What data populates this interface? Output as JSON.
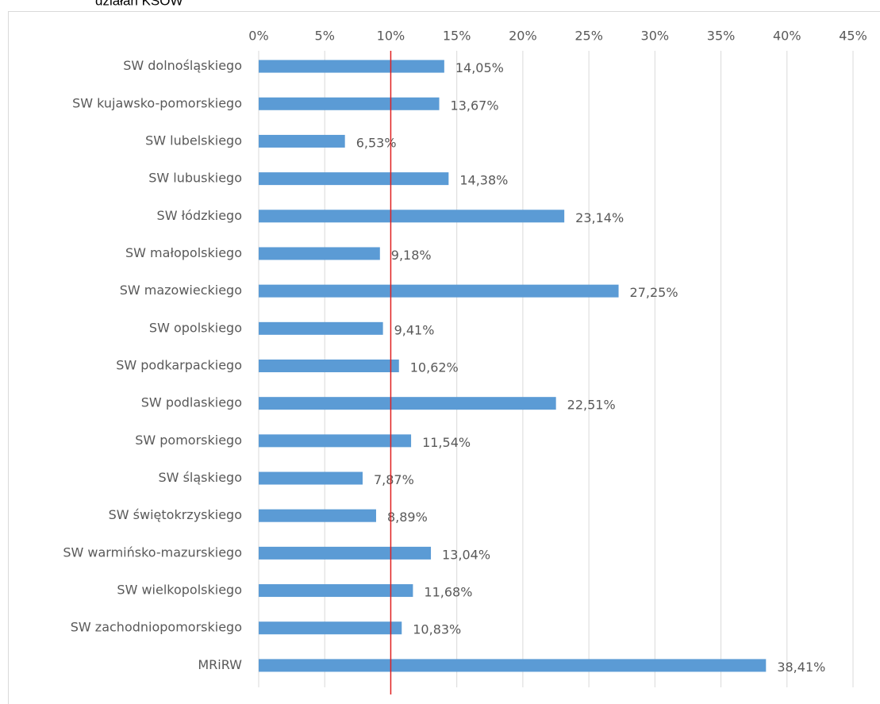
{
  "chart_data": {
    "type": "bar",
    "orientation": "horizontal",
    "title": "działań KSOW",
    "categories": [
      "SW dolnośląskiego",
      "SW kujawsko-pomorskiego",
      "SW lubelskiego",
      "SW lubuskiego",
      "SW łódzkiego",
      "SW małopolskiego",
      "SW mazowieckiego",
      "SW opolskiego",
      "SW podkarpackiego",
      "SW podlaskiego",
      "SW pomorskiego",
      "SW śląskiego",
      "SW świętokrzyskiego",
      "SW warmińsko-mazurskiego",
      "SW wielkopolskiego",
      "SW zachodniopomorskiego",
      "MRiRW"
    ],
    "values": [
      14.05,
      13.67,
      6.53,
      14.38,
      23.14,
      9.18,
      27.25,
      9.41,
      10.62,
      22.51,
      11.54,
      7.87,
      8.89,
      13.04,
      11.68,
      10.83,
      38.41
    ],
    "value_labels": [
      "14,05%",
      "13,67%",
      "6,53%",
      "14,38%",
      "23,14%",
      "9,18%",
      "27,25%",
      "9,41%",
      "10,62%",
      "22,51%",
      "11,54%",
      "7,87%",
      "8,89%",
      "13,04%",
      "11,68%",
      "10,83%",
      "38,41%"
    ],
    "color": "#5b9bd5",
    "xlim": [
      0,
      45
    ],
    "xticks": [
      {
        "value": 0,
        "label": "0%"
      },
      {
        "value": 5,
        "label": "5%"
      },
      {
        "value": 10,
        "label": "10%"
      },
      {
        "value": 15,
        "label": "15%"
      },
      {
        "value": 20,
        "label": "20%"
      },
      {
        "value": 25,
        "label": "25%"
      },
      {
        "value": 30,
        "label": "30%"
      },
      {
        "value": 35,
        "label": "35%"
      },
      {
        "value": 40,
        "label": "40%"
      },
      {
        "value": 45,
        "label": "45%"
      }
    ],
    "grid": true,
    "reference_line": {
      "value": 10,
      "color": "#e02020"
    }
  }
}
